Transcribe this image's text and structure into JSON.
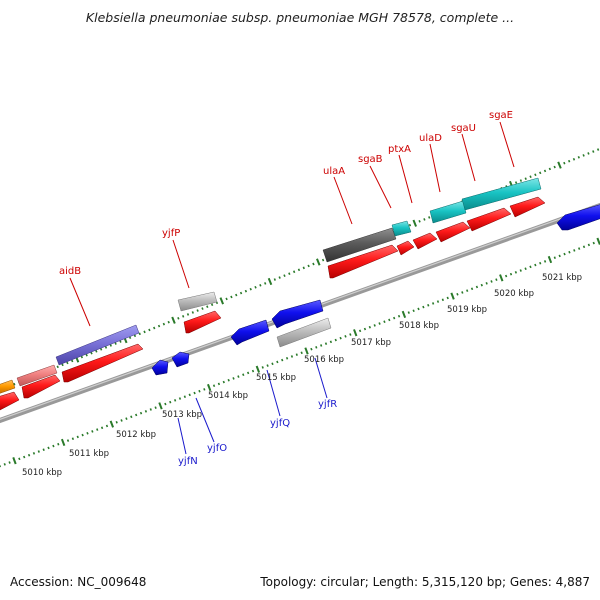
{
  "title": "Klebsiella pneumoniae subsp. pneumoniae MGH 78578, complete ...",
  "footer": {
    "accession": "Accession: NC_009648",
    "summary": "Topology: circular; Length: 5,315,120 bp; Genes: 4,887"
  },
  "colors": {
    "top_labels": "#cc0000",
    "bottom_labels": "#1a1acc",
    "tick": "#2a7a2a",
    "backbone": "#888888"
  },
  "axis_labels": [
    "5010 kbp",
    "5011 kbp",
    "5012 kbp",
    "5013 kbp",
    "5014 kbp",
    "5015 kbp",
    "5016 kbp",
    "5017 kbp",
    "5018 kbp",
    "5019 kbp",
    "5020 kbp",
    "5021 kbp"
  ],
  "top_gene_labels": [
    "aidB",
    "yjfP",
    "ulaA",
    "sgaB",
    "ptxA",
    "ulaD",
    "sgaU",
    "sgaE"
  ],
  "bottom_gene_labels": [
    "yjfN",
    "yjfO",
    "yjfQ",
    "yjfR"
  ]
}
